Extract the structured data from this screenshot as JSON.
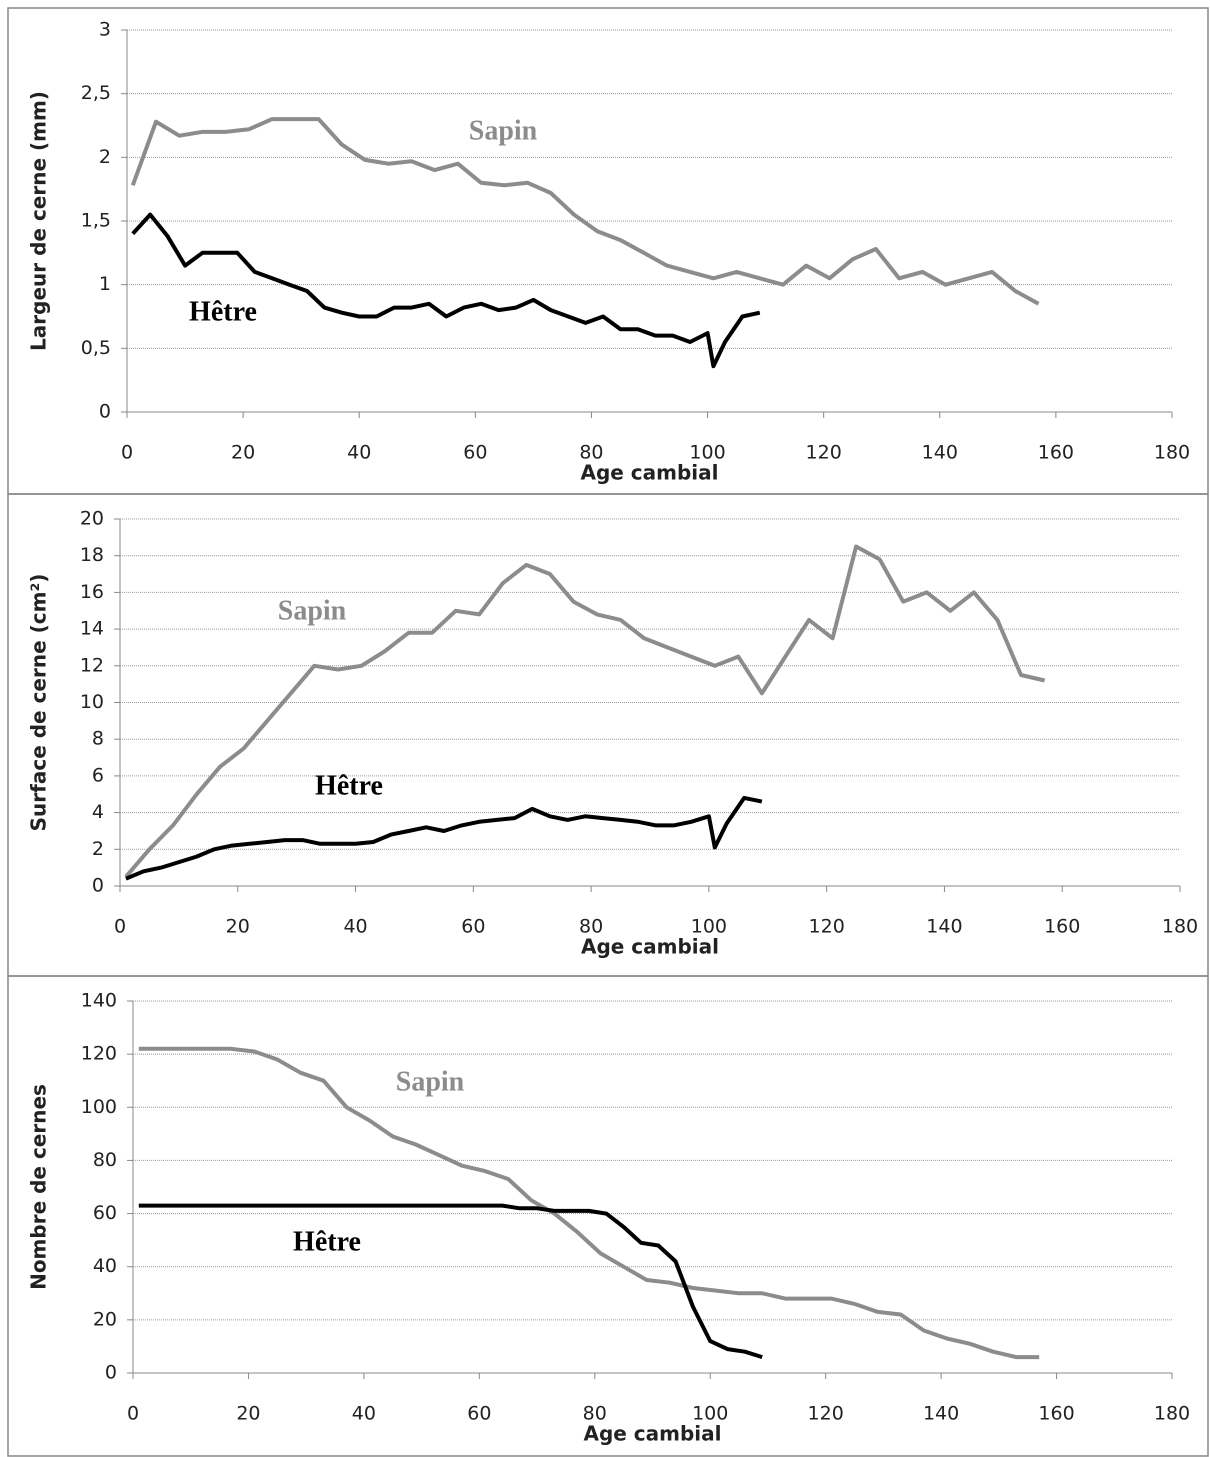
{
  "chart_data": [
    {
      "type": "line",
      "x_label": "Age cambial",
      "y_label": "Largeur de cerne (mm)",
      "grid": true,
      "xlim": [
        0,
        180
      ],
      "xticks": [
        0,
        20,
        40,
        60,
        80,
        100,
        120,
        140,
        160,
        180
      ],
      "ylim": [
        0,
        3
      ],
      "yticks": [
        0,
        {
          "value": 0.5,
          "label": "0,5"
        },
        1,
        {
          "value": 1.5,
          "label": "1,5"
        },
        2,
        {
          "value": 2.5,
          "label": "2,5"
        },
        3
      ],
      "series": [
        {
          "name": "Sapin",
          "color": "#8c8c8c",
          "x": [
            1,
            5,
            9,
            13,
            17,
            21,
            25,
            29,
            33,
            37,
            41,
            45,
            49,
            53,
            57,
            61,
            65,
            69,
            73,
            77,
            81,
            85,
            89,
            93,
            97,
            101,
            105,
            109,
            113,
            117,
            121,
            125,
            129,
            133,
            137,
            141,
            145,
            149,
            153,
            157
          ],
          "values": [
            1.78,
            2.28,
            2.17,
            2.2,
            2.2,
            2.22,
            2.3,
            2.3,
            2.3,
            2.1,
            1.98,
            1.95,
            1.97,
            1.9,
            1.95,
            1.8,
            1.78,
            1.8,
            1.72,
            1.55,
            1.42,
            1.35,
            1.25,
            1.15,
            1.1,
            1.05,
            1.1,
            1.05,
            1.0,
            1.15,
            1.05,
            1.2,
            1.28,
            1.05,
            1.1,
            1.0,
            1.05,
            1.1,
            0.95,
            0.85
          ]
        },
        {
          "name": "Hêtre",
          "color": "#000000",
          "x": [
            1,
            4,
            7,
            10,
            13,
            16,
            19,
            22,
            25,
            28,
            31,
            34,
            37,
            40,
            43,
            46,
            49,
            52,
            55,
            58,
            61,
            64,
            67,
            70,
            73,
            76,
            79,
            82,
            85,
            88,
            91,
            94,
            97,
            100,
            101,
            103,
            106,
            109
          ],
          "values": [
            1.4,
            1.55,
            1.38,
            1.15,
            1.25,
            1.25,
            1.25,
            1.1,
            1.05,
            1.0,
            0.95,
            0.82,
            0.78,
            0.75,
            0.75,
            0.82,
            0.82,
            0.85,
            0.75,
            0.82,
            0.85,
            0.8,
            0.82,
            0.88,
            0.8,
            0.75,
            0.7,
            0.75,
            0.65,
            0.65,
            0.6,
            0.6,
            0.55,
            0.62,
            0.36,
            0.55,
            0.75,
            0.78
          ]
        }
      ]
    },
    {
      "type": "line",
      "x_label": "Age cambial",
      "y_label": "Surface de cerne (cm²)",
      "grid": true,
      "xlim": [
        0,
        180
      ],
      "xticks": [
        0,
        20,
        40,
        60,
        80,
        100,
        120,
        140,
        160,
        180
      ],
      "ylim": [
        0,
        20
      ],
      "yticks": [
        0,
        2,
        4,
        6,
        8,
        10,
        12,
        14,
        16,
        18,
        20
      ],
      "series": [
        {
          "name": "Sapin",
          "color": "#8c8c8c",
          "x": [
            1,
            5,
            9,
            13,
            17,
            21,
            25,
            29,
            33,
            37,
            41,
            45,
            49,
            53,
            57,
            61,
            65,
            69,
            73,
            77,
            81,
            85,
            89,
            93,
            97,
            101,
            105,
            109,
            113,
            117,
            121,
            125,
            129,
            133,
            137,
            141,
            145,
            149,
            153,
            157
          ],
          "values": [
            0.5,
            2,
            3.3,
            5,
            6.5,
            7.5,
            9,
            10.5,
            12,
            11.8,
            12,
            12.8,
            13.8,
            13.8,
            15,
            14.8,
            16.5,
            17.5,
            17,
            15.5,
            14.8,
            14.5,
            13.5,
            13,
            12.5,
            12,
            12.5,
            10.5,
            12.5,
            14.5,
            13.5,
            18.5,
            17.8,
            15.5,
            16,
            15,
            16,
            14.5,
            11.5,
            11.2
          ]
        },
        {
          "name": "Hêtre",
          "color": "#000000",
          "x": [
            1,
            4,
            7,
            10,
            13,
            16,
            19,
            22,
            25,
            28,
            31,
            34,
            37,
            40,
            43,
            46,
            49,
            52,
            55,
            58,
            61,
            64,
            67,
            70,
            73,
            76,
            79,
            82,
            85,
            88,
            91,
            94,
            97,
            100,
            101,
            103,
            106,
            109
          ],
          "values": [
            0.4,
            0.8,
            1.0,
            1.3,
            1.6,
            2.0,
            2.2,
            2.3,
            2.4,
            2.5,
            2.5,
            2.3,
            2.3,
            2.3,
            2.4,
            2.8,
            3.0,
            3.2,
            3.0,
            3.3,
            3.5,
            3.6,
            3.7,
            4.2,
            3.8,
            3.6,
            3.8,
            3.7,
            3.6,
            3.5,
            3.3,
            3.3,
            3.5,
            3.8,
            2.1,
            3.4,
            4.8,
            4.6
          ]
        }
      ]
    },
    {
      "type": "line",
      "x_label": "Age cambial",
      "y_label": "Nombre de cernes",
      "grid": true,
      "xlim": [
        0,
        180
      ],
      "xticks": [
        0,
        20,
        40,
        60,
        80,
        100,
        120,
        140,
        160,
        180
      ],
      "ylim": [
        0,
        140
      ],
      "yticks": [
        0,
        20,
        40,
        60,
        80,
        100,
        120,
        140
      ],
      "series": [
        {
          "name": "Sapin",
          "color": "#8c8c8c",
          "x": [
            1,
            5,
            9,
            13,
            17,
            21,
            25,
            29,
            33,
            37,
            41,
            45,
            49,
            53,
            57,
            61,
            65,
            69,
            73,
            77,
            81,
            85,
            89,
            93,
            97,
            101,
            105,
            109,
            113,
            117,
            121,
            125,
            129,
            133,
            137,
            141,
            145,
            149,
            153,
            157
          ],
          "values": [
            122,
            122,
            122,
            122,
            122,
            121,
            118,
            113,
            110,
            100,
            95,
            89,
            86,
            82,
            78,
            76,
            73,
            65,
            60,
            53,
            45,
            40,
            35,
            34,
            32,
            31,
            30,
            30,
            28,
            28,
            28,
            26,
            23,
            22,
            16,
            13,
            11,
            8,
            6,
            6
          ]
        },
        {
          "name": "Hêtre",
          "color": "#000000",
          "x": [
            1,
            4,
            7,
            10,
            13,
            16,
            19,
            22,
            25,
            28,
            31,
            34,
            37,
            40,
            43,
            46,
            49,
            52,
            55,
            58,
            61,
            64,
            67,
            70,
            73,
            76,
            79,
            82,
            85,
            88,
            91,
            94,
            97,
            100,
            103,
            106,
            109
          ],
          "values": [
            63,
            63,
            63,
            63,
            63,
            63,
            63,
            63,
            63,
            63,
            63,
            63,
            63,
            63,
            63,
            63,
            63,
            63,
            63,
            63,
            63,
            63,
            62,
            62,
            61,
            61,
            61,
            60,
            55,
            49,
            48,
            42,
            25,
            12,
            9,
            8,
            6
          ]
        }
      ]
    }
  ]
}
